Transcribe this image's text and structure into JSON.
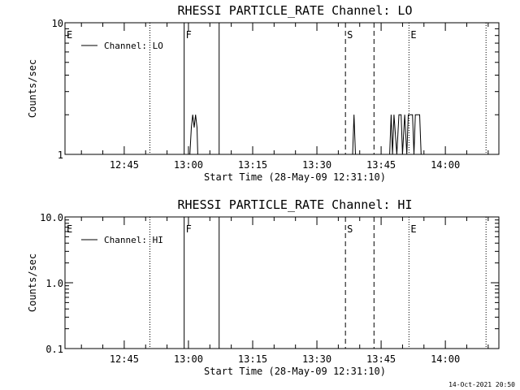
{
  "footer": {
    "timestamp": "14-Oct-2021 20:50"
  },
  "chart_data": [
    {
      "type": "line",
      "title": "RHESSI PARTICLE_RATE Channel: LO",
      "xlabel": "Start Time (28-May-09 12:31:10)",
      "ylabel": "Counts/sec",
      "yscale": "log",
      "ylim": [
        1,
        10
      ],
      "ytick_labels": [
        "1",
        "10"
      ],
      "yticks": [
        1,
        10
      ],
      "xlim": [
        "12:31:10",
        "14:12:30"
      ],
      "xtick_labels": [
        "12:45",
        "13:00",
        "13:15",
        "13:30",
        "13:45",
        "14:00"
      ],
      "xticks": [
        "12:45",
        "13:00",
        "13:15",
        "13:30",
        "13:45",
        "14:00"
      ],
      "legend": {
        "position": "top-left",
        "entries": [
          "Channel: LO"
        ]
      },
      "series": [
        {
          "name": "Channel: LO",
          "color": "#000000",
          "values": [
            [
              "12:31:10",
              1
            ],
            [
              "13:00:20",
              1
            ],
            [
              "13:00:40",
              1.6
            ],
            [
              "13:01:00",
              2
            ],
            [
              "13:01:20",
              1.6
            ],
            [
              "13:01:40",
              2
            ],
            [
              "13:02:00",
              1.6
            ],
            [
              "13:02:10",
              1
            ],
            [
              "13:38:20",
              1
            ],
            [
              "13:38:40",
              2
            ],
            [
              "13:39:00",
              1
            ],
            [
              "13:47:00",
              1
            ],
            [
              "13:47:20",
              2
            ],
            [
              "13:47:40",
              1
            ],
            [
              "13:48:00",
              2
            ],
            [
              "13:48:40",
              1
            ],
            [
              "13:49:10",
              2
            ],
            [
              "13:49:40",
              2
            ],
            [
              "13:50:00",
              1
            ],
            [
              "13:50:30",
              2
            ],
            [
              "13:51:00",
              1
            ],
            [
              "13:51:20",
              2
            ],
            [
              "13:52:20",
              2
            ],
            [
              "13:52:40",
              1
            ],
            [
              "13:53:00",
              2
            ],
            [
              "13:54:00",
              2
            ],
            [
              "13:54:20",
              1
            ],
            [
              "14:12:30",
              1
            ]
          ]
        }
      ],
      "markers": [
        {
          "label": "E",
          "time": "12:31:10",
          "style": "dotted"
        },
        {
          "label": "",
          "time": "12:51:00",
          "style": "dotted"
        },
        {
          "label": "F",
          "time": "12:59:00",
          "style": "solid"
        },
        {
          "label": "",
          "time": "13:07:10",
          "style": "solid"
        },
        {
          "label": "S",
          "time": "13:36:40",
          "style": "dashed"
        },
        {
          "label": "",
          "time": "13:43:20",
          "style": "dashed"
        },
        {
          "label": "E",
          "time": "13:51:30",
          "style": "dotted"
        },
        {
          "label": "",
          "time": "14:09:30",
          "style": "dotted"
        }
      ]
    },
    {
      "type": "line",
      "title": "RHESSI PARTICLE_RATE Channel: HI",
      "xlabel": "Start Time (28-May-09 12:31:10)",
      "ylabel": "Counts/sec",
      "yscale": "log",
      "ylim": [
        0.1,
        10
      ],
      "ytick_labels": [
        "0.1",
        "1.0",
        "10.0"
      ],
      "yticks": [
        0.1,
        1,
        10
      ],
      "xlim": [
        "12:31:10",
        "14:12:30"
      ],
      "xtick_labels": [
        "12:45",
        "13:00",
        "13:15",
        "13:30",
        "13:45",
        "14:00"
      ],
      "xticks": [
        "12:45",
        "13:00",
        "13:15",
        "13:30",
        "13:45",
        "14:00"
      ],
      "legend": {
        "position": "top-left",
        "entries": [
          "Channel: HI"
        ]
      },
      "series": [
        {
          "name": "Channel: HI",
          "color": "#000000",
          "values": []
        }
      ],
      "markers": [
        {
          "label": "E",
          "time": "12:31:10",
          "style": "dotted"
        },
        {
          "label": "",
          "time": "12:51:00",
          "style": "dotted"
        },
        {
          "label": "F",
          "time": "12:59:00",
          "style": "solid"
        },
        {
          "label": "",
          "time": "13:07:10",
          "style": "solid"
        },
        {
          "label": "S",
          "time": "13:36:40",
          "style": "dashed"
        },
        {
          "label": "",
          "time": "13:43:20",
          "style": "dashed"
        },
        {
          "label": "E",
          "time": "13:51:30",
          "style": "dotted"
        },
        {
          "label": "",
          "time": "14:09:30",
          "style": "dotted"
        }
      ]
    }
  ]
}
